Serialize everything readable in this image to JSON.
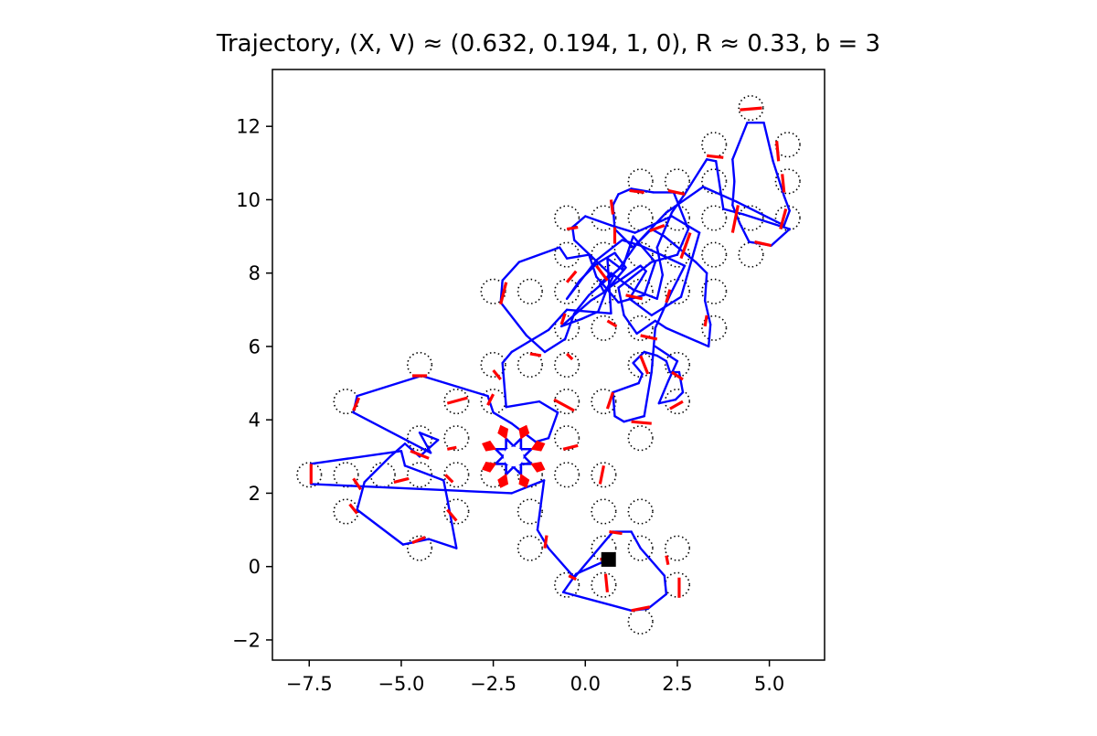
{
  "chart_data": {
    "type": "scatter",
    "title": "Trajectory, (X, V) ≈ (0.632, 0.194, 1, 0), R ≈ 0.33, b = 3",
    "xlabel": "",
    "ylabel": "",
    "xlim": [
      -8.5,
      6.5
    ],
    "ylim": [
      -2.55,
      13.55
    ],
    "xticks": [
      -7.5,
      -5.0,
      -2.5,
      0.0,
      2.5,
      5.0
    ],
    "xtick_labels": [
      "−7.5",
      "−5.0",
      "−2.5",
      "0.0",
      "2.5",
      "5.0"
    ],
    "yticks": [
      -2,
      0,
      2,
      4,
      6,
      8,
      10,
      12
    ],
    "ytick_labels": [
      "−2",
      "0",
      "2",
      "4",
      "6",
      "8",
      "10",
      "12"
    ],
    "grid": false,
    "legend": "none",
    "scatterer_radius": 0.33,
    "scatterer_style": "dotted black circles",
    "scatterers": [
      [
        4.5,
        12.5
      ],
      [
        3.5,
        11.5
      ],
      [
        5.5,
        11.5
      ],
      [
        1.5,
        10.5
      ],
      [
        2.5,
        10.5
      ],
      [
        3.5,
        10.5
      ],
      [
        5.5,
        10.5
      ],
      [
        -0.5,
        9.5
      ],
      [
        0.5,
        9.5
      ],
      [
        1.5,
        9.5
      ],
      [
        2.5,
        9.5
      ],
      [
        3.5,
        9.5
      ],
      [
        4.5,
        9.5
      ],
      [
        5.5,
        9.5
      ],
      [
        -0.5,
        8.5
      ],
      [
        0.5,
        8.5
      ],
      [
        1.5,
        8.5
      ],
      [
        2.5,
        8.5
      ],
      [
        3.5,
        8.5
      ],
      [
        4.5,
        8.5
      ],
      [
        -2.5,
        7.5
      ],
      [
        -1.5,
        7.5
      ],
      [
        -0.5,
        7.5
      ],
      [
        0.5,
        7.5
      ],
      [
        1.5,
        7.5
      ],
      [
        2.5,
        7.5
      ],
      [
        3.5,
        7.5
      ],
      [
        -0.5,
        6.5
      ],
      [
        0.5,
        6.5
      ],
      [
        1.5,
        6.5
      ],
      [
        3.5,
        6.5
      ],
      [
        -4.5,
        5.5
      ],
      [
        -2.5,
        5.5
      ],
      [
        -1.5,
        5.5
      ],
      [
        -0.5,
        5.5
      ],
      [
        1.5,
        5.5
      ],
      [
        2.5,
        5.5
      ],
      [
        -6.5,
        4.5
      ],
      [
        -3.5,
        4.5
      ],
      [
        -2.5,
        4.5
      ],
      [
        -0.5,
        4.5
      ],
      [
        0.5,
        4.5
      ],
      [
        2.5,
        4.5
      ],
      [
        -4.5,
        3.5
      ],
      [
        -3.5,
        3.5
      ],
      [
        -0.5,
        3.5
      ],
      [
        1.5,
        3.5
      ],
      [
        -7.5,
        2.5
      ],
      [
        -6.5,
        2.5
      ],
      [
        -5.5,
        2.5
      ],
      [
        -4.5,
        2.5
      ],
      [
        -3.5,
        2.5
      ],
      [
        -2.5,
        2.5
      ],
      [
        -1.5,
        2.5
      ],
      [
        -0.5,
        2.5
      ],
      [
        0.5,
        2.5
      ],
      [
        -6.5,
        1.5
      ],
      [
        -3.5,
        1.5
      ],
      [
        -1.5,
        1.5
      ],
      [
        0.5,
        1.5
      ],
      [
        1.5,
        1.5
      ],
      [
        -4.5,
        0.5
      ],
      [
        -1.5,
        0.5
      ],
      [
        0.5,
        0.5
      ],
      [
        1.5,
        0.5
      ],
      [
        2.5,
        0.5
      ],
      [
        -0.5,
        -0.5
      ],
      [
        0.5,
        -0.5
      ],
      [
        2.5,
        -0.5
      ],
      [
        1.5,
        -1.5
      ]
    ],
    "trapped_orbit_center": [
      -1.95,
      3.0
    ],
    "trapped_orbit_radius": 0.53,
    "free_flight_color": "#0000ff",
    "contact_color": "#ff0000",
    "endpoint": {
      "x": 0.632,
      "y": 0.194,
      "marker": "square",
      "color": "#000000"
    },
    "trajectory": [
      [
        0.632,
        0.194
      ],
      [
        -0.25,
        -0.2
      ],
      [
        -0.6,
        -0.7
      ],
      [
        0.7,
        -1.05
      ],
      [
        1.25,
        -1.2
      ],
      [
        1.7,
        -1.15
      ],
      [
        2.2,
        -0.75
      ],
      [
        2.15,
        -0.25
      ],
      [
        1.5,
        0.5
      ],
      [
        1.25,
        0.95
      ],
      [
        0.75,
        0.95
      ],
      [
        -0.3,
        -0.3
      ],
      [
        -1.0,
        0.5
      ],
      [
        -1.15,
        0.75
      ],
      [
        -1.3,
        1.0
      ],
      [
        -1.12,
        2.35
      ],
      [
        -2.0,
        2.0
      ],
      [
        -6.35,
        2.2
      ],
      [
        -7.45,
        2.25
      ],
      [
        -7.45,
        2.8
      ],
      [
        -5.0,
        3.15
      ],
      [
        -4.9,
        2.75
      ],
      [
        -4.5,
        2.6
      ],
      [
        -3.85,
        2.35
      ],
      [
        -3.75,
        1.85
      ],
      [
        -3.5,
        0.5
      ],
      [
        -4.25,
        0.75
      ],
      [
        -4.95,
        0.6
      ],
      [
        -6.2,
        1.55
      ],
      [
        -6.0,
        2.3
      ],
      [
        -5.3,
        3.0
      ],
      [
        -4.9,
        3.35
      ],
      [
        -4.5,
        3.0
      ],
      [
        -4.0,
        3.45
      ],
      [
        -4.5,
        3.65
      ],
      [
        -4.2,
        3.1
      ],
      [
        -6.3,
        4.2
      ],
      [
        -6.2,
        4.65
      ],
      [
        -4.45,
        5.2
      ],
      [
        -2.65,
        4.65
      ],
      [
        -2.5,
        4.2
      ],
      [
        -2.0,
        3.9
      ],
      [
        -1.35,
        3.4
      ],
      [
        -1.0,
        3.5
      ],
      [
        -0.75,
        4.2
      ],
      [
        -1.25,
        4.5
      ],
      [
        -2.15,
        4.35
      ],
      [
        -2.25,
        5.55
      ],
      [
        -2.0,
        5.85
      ],
      [
        -1.0,
        6.45
      ],
      [
        -0.5,
        7.0
      ],
      [
        0.7,
        6.9
      ],
      [
        0.6,
        8.4
      ],
      [
        1.0,
        8.1
      ],
      [
        1.3,
        9.0
      ],
      [
        1.9,
        8.3
      ],
      [
        1.6,
        7.4
      ],
      [
        0.9,
        7.2
      ],
      [
        0.3,
        7.9
      ],
      [
        0.1,
        8.5
      ],
      [
        -0.5,
        8.4
      ],
      [
        -0.7,
        8.7
      ],
      [
        -1.8,
        8.3
      ],
      [
        -2.25,
        7.8
      ],
      [
        -2.3,
        7.2
      ],
      [
        -1.6,
        6.3
      ],
      [
        -1.1,
        5.85
      ],
      [
        -0.55,
        6.2
      ],
      [
        -0.3,
        6.9
      ],
      [
        0.1,
        7.4
      ],
      [
        0.9,
        8.1
      ],
      [
        1.4,
        8.8
      ],
      [
        1.8,
        9.2
      ],
      [
        2.15,
        9.0
      ],
      [
        3.0,
        8.3
      ],
      [
        3.3,
        8.0
      ],
      [
        3.25,
        7.25
      ],
      [
        3.4,
        6.6
      ],
      [
        3.35,
        6.0
      ],
      [
        2.2,
        6.5
      ],
      [
        1.9,
        6.7
      ],
      [
        1.4,
        6.35
      ],
      [
        1.05,
        6.85
      ],
      [
        0.9,
        7.6
      ],
      [
        1.8,
        8.3
      ],
      [
        2.5,
        8.5
      ],
      [
        2.8,
        9.2
      ],
      [
        2.4,
        10.2
      ],
      [
        1.85,
        10.2
      ],
      [
        1.25,
        10.3
      ],
      [
        0.9,
        10.15
      ],
      [
        0.75,
        9.85
      ],
      [
        0.8,
        9.2
      ],
      [
        1.3,
        8.7
      ],
      [
        2.2,
        9.65
      ],
      [
        3.2,
        10.35
      ],
      [
        4.1,
        9.95
      ],
      [
        5.4,
        9.3
      ],
      [
        5.55,
        9.7
      ],
      [
        5.4,
        10.1
      ],
      [
        5.1,
        11.05
      ],
      [
        4.85,
        12.1
      ],
      [
        4.4,
        12.1
      ],
      [
        4.0,
        11.1
      ],
      [
        4.05,
        10.5
      ],
      [
        4.0,
        9.85
      ],
      [
        4.2,
        9.35
      ],
      [
        4.45,
        8.85
      ],
      [
        5.05,
        8.75
      ],
      [
        5.55,
        9.2
      ],
      [
        4.3,
        9.6
      ],
      [
        3.75,
        9.75
      ],
      [
        3.55,
        11.05
      ],
      [
        3.3,
        11.1
      ],
      [
        2.7,
        10.15
      ],
      [
        2.35,
        9.65
      ],
      [
        1.95,
        8.7
      ],
      [
        2.1,
        7.95
      ],
      [
        1.95,
        7.3
      ],
      [
        1.3,
        7.55
      ],
      [
        0.7,
        8.0
      ],
      [
        0.4,
        7.7
      ],
      [
        0.5,
        7.5
      ],
      [
        1.5,
        8.2
      ],
      [
        1.65,
        8.05
      ],
      [
        1.2,
        7.3
      ],
      [
        1.8,
        6.85
      ],
      [
        2.6,
        7.35
      ],
      [
        3.1,
        9.1
      ],
      [
        2.35,
        9.55
      ],
      [
        1.35,
        9.1
      ],
      [
        0.7,
        9.3
      ],
      [
        0.0,
        9.55
      ],
      [
        -0.35,
        9.25
      ],
      [
        -0.3,
        8.9
      ],
      [
        0.75,
        7.9
      ],
      [
        0.6,
        7.6
      ],
      [
        0.35,
        6.95
      ],
      [
        -0.1,
        6.75
      ],
      [
        -0.65,
        6.55
      ],
      [
        0.15,
        7.25
      ],
      [
        0.55,
        7.5
      ],
      [
        1.1,
        8.15
      ],
      [
        0.8,
        8.55
      ],
      [
        0.3,
        8.25
      ],
      [
        -0.15,
        7.8
      ],
      [
        -0.5,
        7.3
      ],
      [
        0.3,
        8.35
      ],
      [
        1.0,
        8.9
      ],
      [
        1.5,
        8.75
      ],
      [
        1.95,
        8.55
      ],
      [
        2.7,
        8.2
      ],
      [
        2.3,
        7.4
      ],
      [
        1.9,
        6.5
      ],
      [
        1.8,
        5.3
      ],
      [
        1.6,
        4.1
      ],
      [
        1.05,
        3.95
      ],
      [
        0.8,
        4.1
      ],
      [
        0.75,
        4.75
      ],
      [
        1.45,
        5.0
      ],
      [
        1.55,
        5.25
      ],
      [
        1.3,
        5.55
      ],
      [
        1.6,
        5.85
      ],
      [
        1.95,
        5.75
      ],
      [
        2.2,
        5.6
      ],
      [
        2.3,
        5.3
      ],
      [
        2.55,
        5.3
      ],
      [
        2.65,
        4.75
      ],
      [
        2.45,
        4.55
      ],
      [
        2.0,
        4.45
      ],
      [
        2.25,
        5.05
      ],
      [
        2.5,
        5.6
      ],
      [
        1.9,
        6.0
      ]
    ],
    "contact_arcs": [
      [
        [
          4.2,
          12.45
        ],
        [
          4.8,
          12.5
        ]
      ],
      [
        [
          3.3,
          11.2
        ],
        [
          3.75,
          11.15
        ]
      ],
      [
        [
          5.2,
          11.6
        ],
        [
          5.25,
          11.05
        ]
      ],
      [
        [
          5.4,
          10.2
        ],
        [
          5.35,
          10.7
        ]
      ],
      [
        [
          2.25,
          10.25
        ],
        [
          2.7,
          10.15
        ]
      ],
      [
        [
          1.2,
          10.25
        ],
        [
          1.6,
          10.2
        ]
      ],
      [
        [
          0.7,
          10.0
        ],
        [
          0.75,
          9.6
        ]
      ],
      [
        [
          -0.5,
          9.2
        ],
        [
          -0.2,
          9.25
        ]
      ],
      [
        [
          4.0,
          9.1
        ],
        [
          4.15,
          9.85
        ]
      ],
      [
        [
          5.3,
          9.2
        ],
        [
          5.45,
          9.75
        ]
      ],
      [
        [
          4.6,
          8.85
        ],
        [
          5.05,
          8.75
        ]
      ],
      [
        [
          2.6,
          8.4
        ],
        [
          2.85,
          9.1
        ]
      ],
      [
        [
          1.75,
          9.15
        ],
        [
          2.15,
          9.3
        ]
      ],
      [
        [
          0.8,
          9.25
        ],
        [
          0.8,
          8.8
        ]
      ],
      [
        [
          -2.3,
          7.15
        ],
        [
          -2.15,
          7.75
        ]
      ],
      [
        [
          -0.5,
          7.75
        ],
        [
          -0.25,
          8.05
        ]
      ],
      [
        [
          0.3,
          8.2
        ],
        [
          0.6,
          7.8
        ]
      ],
      [
        [
          1.1,
          7.4
        ],
        [
          1.55,
          7.3
        ]
      ],
      [
        [
          2.2,
          7.2
        ],
        [
          2.3,
          7.55
        ]
      ],
      [
        [
          3.25,
          6.55
        ],
        [
          3.3,
          6.85
        ]
      ],
      [
        [
          1.5,
          6.3
        ],
        [
          1.95,
          6.2
        ]
      ],
      [
        [
          0.6,
          6.7
        ],
        [
          0.85,
          6.55
        ]
      ],
      [
        [
          -0.65,
          6.6
        ],
        [
          -0.55,
          6.9
        ]
      ],
      [
        [
          -4.7,
          5.2
        ],
        [
          -4.3,
          5.2
        ]
      ],
      [
        [
          -2.5,
          5.35
        ],
        [
          -2.3,
          5.1
        ]
      ],
      [
        [
          -1.5,
          5.8
        ],
        [
          -1.2,
          5.75
        ]
      ],
      [
        [
          -0.5,
          5.8
        ],
        [
          -0.35,
          5.65
        ]
      ],
      [
        [
          1.7,
          5.25
        ],
        [
          1.5,
          5.75
        ]
      ],
      [
        [
          2.35,
          5.3
        ],
        [
          2.65,
          5.1
        ]
      ],
      [
        [
          -6.3,
          4.25
        ],
        [
          -6.15,
          4.6
        ]
      ],
      [
        [
          -2.65,
          4.4
        ],
        [
          -2.5,
          4.7
        ]
      ],
      [
        [
          -3.75,
          4.45
        ],
        [
          -3.2,
          4.6
        ]
      ],
      [
        [
          -0.85,
          4.55
        ],
        [
          -0.3,
          4.25
        ]
      ],
      [
        [
          0.6,
          4.3
        ],
        [
          0.75,
          4.75
        ]
      ],
      [
        [
          2.3,
          4.3
        ],
        [
          2.65,
          4.5
        ]
      ],
      [
        [
          -4.75,
          3.15
        ],
        [
          -4.25,
          2.95
        ]
      ],
      [
        [
          -3.75,
          3.2
        ],
        [
          -3.5,
          3.25
        ]
      ],
      [
        [
          -0.6,
          3.2
        ],
        [
          -0.2,
          3.3
        ]
      ],
      [
        [
          1.25,
          3.95
        ],
        [
          1.8,
          3.9
        ]
      ],
      [
        [
          -7.45,
          2.25
        ],
        [
          -7.45,
          2.8
        ]
      ],
      [
        [
          -6.3,
          2.4
        ],
        [
          -6.1,
          2.1
        ]
      ],
      [
        [
          -5.2,
          2.3
        ],
        [
          -4.8,
          2.4
        ]
      ],
      [
        [
          -3.8,
          2.5
        ],
        [
          -3.6,
          2.3
        ]
      ],
      [
        [
          0.4,
          2.25
        ],
        [
          0.5,
          2.75
        ]
      ],
      [
        [
          -6.4,
          1.7
        ],
        [
          -6.2,
          1.45
        ]
      ],
      [
        [
          -3.5,
          1.25
        ],
        [
          -3.75,
          1.55
        ]
      ],
      [
        [
          -4.7,
          0.65
        ],
        [
          -4.35,
          0.8
        ]
      ],
      [
        [
          -1.1,
          0.5
        ],
        [
          -1.05,
          0.85
        ]
      ],
      [
        [
          0.4,
          0.2
        ],
        [
          0.6,
          0.2
        ]
      ],
      [
        [
          0.65,
          0.95
        ],
        [
          1.0,
          0.9
        ]
      ],
      [
        [
          2.2,
          0.3
        ],
        [
          2.25,
          0.05
        ]
      ],
      [
        [
          2.55,
          -0.3
        ],
        [
          2.55,
          -0.85
        ]
      ],
      [
        [
          -0.45,
          -0.25
        ],
        [
          -0.25,
          -0.35
        ]
      ],
      [
        [
          0.55,
          -0.2
        ],
        [
          0.6,
          -0.7
        ]
      ],
      [
        [
          1.25,
          -1.2
        ],
        [
          1.75,
          -1.1
        ]
      ]
    ]
  }
}
